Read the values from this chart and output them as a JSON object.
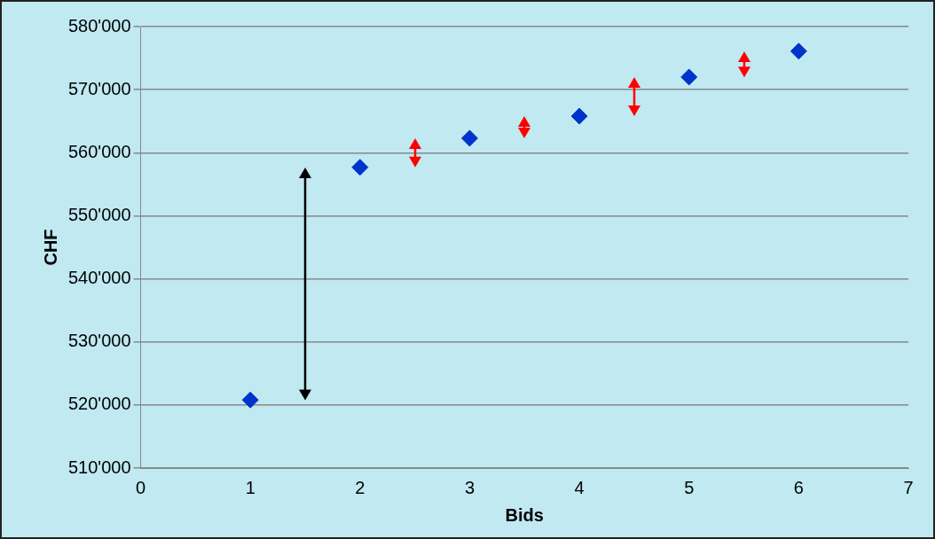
{
  "chart_data": {
    "type": "scatter",
    "xlabel": "Bids",
    "ylabel": "CHF",
    "x": [
      1,
      2,
      3,
      4,
      5,
      6
    ],
    "series": [
      {
        "color": "#0033cc",
        "values": [
          520800,
          557700,
          562300,
          565800,
          572000,
          576100
        ]
      }
    ],
    "xlim": [
      0,
      7
    ],
    "xticks": [
      0,
      1,
      2,
      3,
      4,
      5,
      6,
      7
    ],
    "ylim": [
      510000,
      580000
    ],
    "yticks": [
      {
        "value": 510000,
        "label": "510'000"
      },
      {
        "value": 520000,
        "label": "520'000"
      },
      {
        "value": 530000,
        "label": "530'000"
      },
      {
        "value": 540000,
        "label": "540'000"
      },
      {
        "value": 550000,
        "label": "550'000"
      },
      {
        "value": 560000,
        "label": "560'000"
      },
      {
        "value": 570000,
        "label": "570'000"
      },
      {
        "value": 580000,
        "label": "580'000"
      }
    ],
    "grid": "y",
    "marker": "diamond",
    "legend": false
  }
}
